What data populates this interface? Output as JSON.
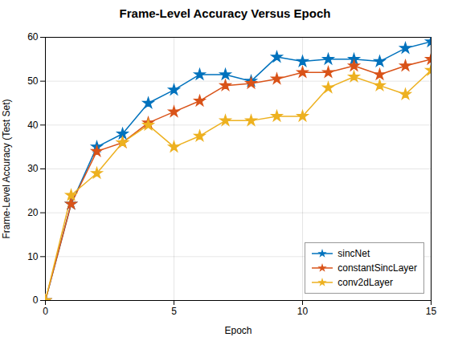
{
  "chart_data": {
    "type": "line",
    "title": "Frame-Level Accuracy Versus Epoch",
    "xlabel": "Epoch",
    "ylabel": "Frame-Level Accuracy (Test Set)",
    "x": [
      0,
      1,
      2,
      3,
      4,
      5,
      6,
      7,
      8,
      9,
      10,
      11,
      12,
      13,
      14,
      15
    ],
    "series": [
      {
        "name": "sincNet",
        "color": "#0072BD",
        "values": [
          0,
          22,
          35,
          38,
          45,
          48,
          51.5,
          51.5,
          50,
          55.5,
          54.5,
          55,
          55,
          54.5,
          57.5,
          59
        ]
      },
      {
        "name": "constantSincLayer",
        "color": "#D95319",
        "values": [
          0,
          22,
          34,
          36,
          40.5,
          43,
          45.5,
          49,
          49.5,
          50.5,
          52,
          52,
          53.5,
          51.5,
          53.5,
          55
        ]
      },
      {
        "name": "conv2dLayer",
        "color": "#EDB120",
        "values": [
          0,
          24,
          29,
          36,
          40,
          35,
          37.5,
          41,
          41,
          42,
          42,
          48.5,
          51,
          49,
          47,
          52.5
        ]
      }
    ],
    "xlim": [
      0,
      15
    ],
    "xticks": [
      0,
      5,
      10,
      15
    ],
    "ylim": [
      0,
      60
    ],
    "yticks": [
      0,
      10,
      20,
      30,
      40,
      50,
      60
    ],
    "grid": true,
    "legend": "lower right",
    "marker": "star"
  }
}
